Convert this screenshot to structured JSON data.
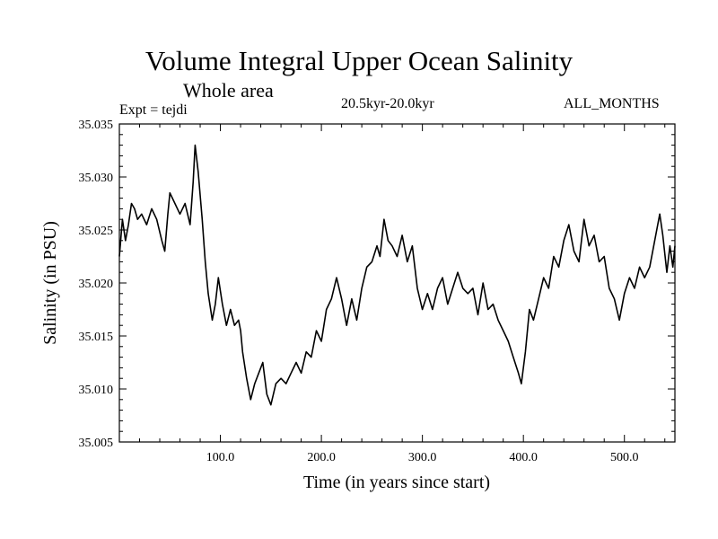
{
  "chart_data": {
    "type": "line",
    "title": "Volume Integral Upper Ocean Salinity",
    "subtitle": "Whole area",
    "experiment": "Expt = tejdi",
    "period": "20.5kyr-20.0kyr",
    "months": "ALL_MONTHS",
    "xlabel": "Time (in years since start)",
    "ylabel": "Salinity (in PSU)",
    "xlim": [
      0,
      550
    ],
    "ylim": [
      35.005,
      35.035
    ],
    "xticks": [
      100,
      200,
      300,
      400,
      500
    ],
    "xtick_labels": [
      "100.0",
      "200.0",
      "300.0",
      "400.0",
      "500.0"
    ],
    "yticks": [
      35.005,
      35.01,
      35.015,
      35.02,
      35.025,
      35.03,
      35.035
    ],
    "ytick_labels": [
      "35.005",
      "35.010",
      "35.015",
      "35.020",
      "35.025",
      "35.030",
      "35.035"
    ],
    "grid": false,
    "series": [
      {
        "name": "salinity",
        "x": [
          0,
          3,
          6,
          9,
          12,
          15,
          18,
          22,
          27,
          32,
          37,
          42,
          45,
          48,
          50,
          55,
          60,
          65,
          70,
          73,
          75,
          78,
          82,
          85,
          88,
          92,
          95,
          98,
          102,
          106,
          110,
          114,
          118,
          120,
          122,
          126,
          130,
          134,
          138,
          142,
          146,
          150,
          155,
          160,
          165,
          170,
          175,
          180,
          185,
          190,
          195,
          200,
          205,
          210,
          215,
          220,
          225,
          230,
          235,
          240,
          245,
          250,
          255,
          258,
          262,
          266,
          270,
          275,
          280,
          285,
          290,
          295,
          300,
          305,
          310,
          315,
          320,
          325,
          330,
          335,
          340,
          345,
          350,
          355,
          360,
          365,
          370,
          375,
          380,
          385,
          390,
          395,
          398,
          402,
          406,
          410,
          415,
          420,
          425,
          430,
          435,
          440,
          445,
          450,
          455,
          460,
          465,
          470,
          475,
          480,
          485,
          490,
          495,
          500,
          505,
          510,
          515,
          520,
          525,
          530,
          535,
          538,
          542,
          545,
          548,
          550
        ],
        "values": [
          35.0225,
          35.026,
          35.024,
          35.0255,
          35.0275,
          35.027,
          35.026,
          35.0265,
          35.0255,
          35.027,
          35.026,
          35.024,
          35.023,
          35.0265,
          35.0285,
          35.0275,
          35.0265,
          35.0275,
          35.0255,
          35.0295,
          35.033,
          35.0305,
          35.026,
          35.022,
          35.019,
          35.0165,
          35.018,
          35.0205,
          35.018,
          35.016,
          35.0175,
          35.016,
          35.0165,
          35.0155,
          35.0135,
          35.011,
          35.009,
          35.0105,
          35.0115,
          35.0125,
          35.0095,
          35.0085,
          35.0105,
          35.011,
          35.0105,
          35.0115,
          35.0125,
          35.0115,
          35.0135,
          35.013,
          35.0155,
          35.0145,
          35.0175,
          35.0185,
          35.0205,
          35.0185,
          35.016,
          35.0185,
          35.0165,
          35.0195,
          35.0215,
          35.022,
          35.0235,
          35.0225,
          35.026,
          35.024,
          35.0235,
          35.0225,
          35.0245,
          35.022,
          35.0235,
          35.0195,
          35.0175,
          35.019,
          35.0175,
          35.0195,
          35.0205,
          35.018,
          35.0195,
          35.021,
          35.0195,
          35.019,
          35.0195,
          35.017,
          35.02,
          35.0175,
          35.018,
          35.0165,
          35.0155,
          35.0145,
          35.013,
          35.0115,
          35.0105,
          35.0135,
          35.0175,
          35.0165,
          35.0185,
          35.0205,
          35.0195,
          35.0225,
          35.0215,
          35.024,
          35.0255,
          35.023,
          35.022,
          35.026,
          35.0235,
          35.0245,
          35.022,
          35.0225,
          35.0195,
          35.0185,
          35.0165,
          35.019,
          35.0205,
          35.0195,
          35.0215,
          35.0205,
          35.0215,
          35.024,
          35.0265,
          35.0245,
          35.021,
          35.0235,
          35.0215,
          35.0235
        ]
      }
    ]
  }
}
